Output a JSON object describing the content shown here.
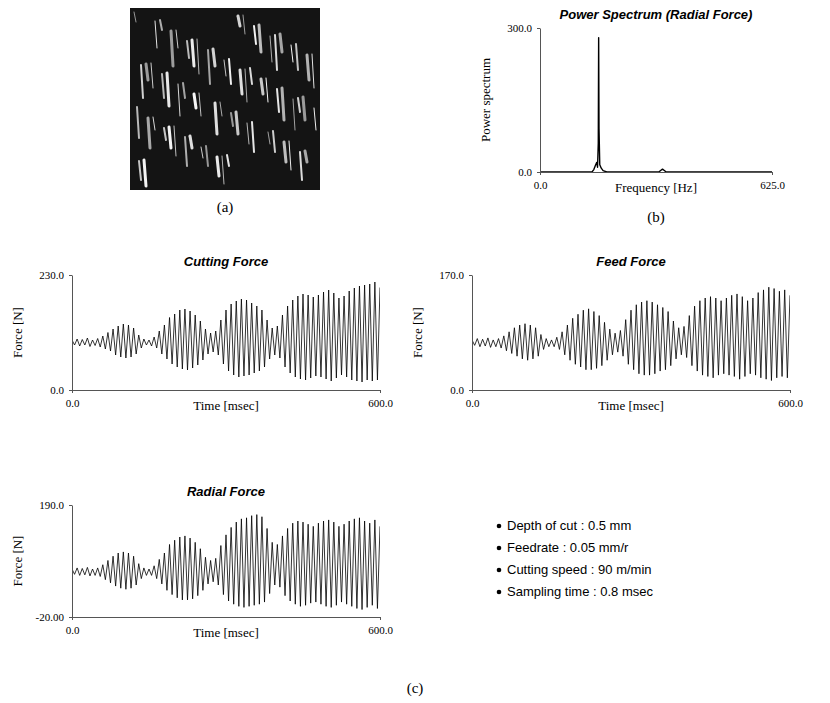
{
  "figure": {
    "panel_labels": [
      "(a)",
      "(b)",
      "(c)"
    ],
    "parameters": [
      "Depth of cut : 0.5 mm",
      "Feedrate : 0.05 mm/r",
      "Cutting speed : 90 m/min",
      "Sampling time : 0.8 msec"
    ]
  },
  "chart_data": [
    {
      "type": "line",
      "title": "Power Spectrum (Radial Force)",
      "x_label": "Frequency [Hz]",
      "y_label": "Power spectrum",
      "color": "#000000",
      "x": [
        0,
        140,
        145,
        150,
        153,
        155,
        157,
        158,
        159,
        161,
        165,
        170,
        180,
        320,
        325,
        330,
        335,
        340,
        625
      ],
      "values": [
        0,
        0,
        5,
        15,
        20,
        10,
        60,
        280,
        90,
        15,
        8,
        3,
        0,
        0,
        3,
        6,
        3,
        0,
        0
      ],
      "xlim": [
        0,
        625
      ],
      "xticks": [
        {
          "value": 0,
          "label": "0.0"
        },
        {
          "value": 625,
          "label": "625.0"
        }
      ],
      "ylim": [
        0,
        300
      ],
      "yticks": [
        {
          "value": 0,
          "label": "0.0"
        },
        {
          "value": 300,
          "label": "300.0"
        }
      ]
    },
    {
      "type": "line",
      "title": "Cutting Force",
      "x_label": "Time [msec]",
      "y_label": "Force [N]",
      "color": "#000000",
      "x": [
        0,
        5,
        10,
        15,
        20,
        25,
        30,
        35,
        40,
        45,
        50,
        55,
        60,
        65,
        70,
        75,
        80,
        85,
        90,
        95,
        100,
        105,
        110,
        115,
        120,
        125,
        130,
        135,
        140,
        145,
        150,
        155,
        160,
        165,
        170,
        175,
        180,
        185,
        190,
        195,
        200,
        205,
        210,
        215,
        220,
        225,
        230,
        235,
        240,
        245,
        250,
        255,
        260,
        265,
        270,
        275,
        280,
        285,
        290,
        295,
        300,
        305,
        310,
        315,
        320,
        325,
        330,
        335,
        340,
        345,
        350,
        355,
        360,
        365,
        370,
        375,
        380,
        385,
        390,
        395,
        400,
        405,
        410,
        415,
        420,
        425,
        430,
        435,
        440,
        445,
        450,
        455,
        460,
        465,
        470,
        475,
        480,
        485,
        490,
        495,
        500,
        505,
        510,
        515,
        520,
        525,
        530,
        535,
        540,
        545,
        550,
        555,
        560,
        565,
        570,
        575,
        580,
        585,
        590,
        595,
        600
      ],
      "values": [
        100,
        90,
        102,
        88,
        101,
        90,
        104,
        87,
        100,
        89,
        103,
        86,
        108,
        82,
        115,
        78,
        122,
        70,
        128,
        66,
        132,
        64,
        130,
        66,
        124,
        72,
        110,
        84,
        102,
        90,
        100,
        88,
        106,
        84,
        118,
        72,
        130,
        62,
        145,
        52,
        152,
        46,
        160,
        42,
        162,
        40,
        158,
        44,
        150,
        50,
        138,
        60,
        122,
        72,
        114,
        76,
        118,
        70,
        140,
        52,
        160,
        38,
        172,
        30,
        178,
        26,
        182,
        28,
        180,
        30,
        174,
        34,
        168,
        38,
        160,
        46,
        140,
        62,
        124,
        70,
        128,
        64,
        150,
        46,
        168,
        34,
        180,
        26,
        188,
        22,
        192,
        20,
        190,
        24,
        186,
        28,
        190,
        26,
        196,
        22,
        200,
        18,
        194,
        24,
        184,
        30,
        188,
        26,
        198,
        20,
        204,
        18,
        208,
        16,
        210,
        20,
        212,
        18,
        216,
        20,
        205
      ],
      "xlim": [
        0,
        600
      ],
      "xticks": [
        {
          "value": 0,
          "label": "0.0"
        },
        {
          "value": 600,
          "label": "600.0"
        }
      ],
      "ylim": [
        0,
        230
      ],
      "yticks": [
        {
          "value": 0,
          "label": "0.0"
        },
        {
          "value": 230,
          "label": "230.0"
        }
      ]
    },
    {
      "type": "line",
      "title": "Feed Force",
      "x_label": "Time [msec]",
      "y_label": "Force [N]",
      "color": "#000000",
      "x": [
        0,
        5,
        10,
        15,
        20,
        25,
        30,
        35,
        40,
        45,
        50,
        55,
        60,
        65,
        70,
        75,
        80,
        85,
        90,
        95,
        100,
        105,
        110,
        115,
        120,
        125,
        130,
        135,
        140,
        145,
        150,
        155,
        160,
        165,
        170,
        175,
        180,
        185,
        190,
        195,
        200,
        205,
        210,
        215,
        220,
        225,
        230,
        235,
        240,
        245,
        250,
        255,
        260,
        265,
        270,
        275,
        280,
        285,
        290,
        295,
        300,
        305,
        310,
        315,
        320,
        325,
        330,
        335,
        340,
        345,
        350,
        355,
        360,
        365,
        370,
        375,
        380,
        385,
        390,
        395,
        400,
        405,
        410,
        415,
        420,
        425,
        430,
        435,
        440,
        445,
        450,
        455,
        460,
        465,
        470,
        475,
        480,
        485,
        490,
        495,
        500,
        505,
        510,
        515,
        520,
        525,
        530,
        535,
        540,
        545,
        550,
        555,
        560,
        565,
        570,
        575,
        580,
        585,
        590,
        595,
        600
      ],
      "values": [
        74,
        66,
        76,
        64,
        75,
        65,
        77,
        63,
        74,
        64,
        76,
        62,
        80,
        58,
        86,
        54,
        92,
        50,
        96,
        46,
        98,
        44,
        96,
        46,
        92,
        50,
        82,
        60,
        76,
        64,
        74,
        64,
        78,
        60,
        86,
        52,
        96,
        44,
        106,
        38,
        112,
        34,
        118,
        30,
        120,
        30,
        116,
        32,
        110,
        36,
        100,
        44,
        90,
        52,
        84,
        56,
        88,
        50,
        104,
        38,
        118,
        30,
        126,
        24,
        130,
        22,
        132,
        22,
        130,
        24,
        126,
        28,
        122,
        30,
        116,
        36,
        102,
        46,
        92,
        52,
        94,
        48,
        110,
        36,
        124,
        28,
        132,
        22,
        136,
        20,
        138,
        18,
        136,
        22,
        132,
        24,
        136,
        22,
        140,
        20,
        142,
        16,
        138,
        20,
        132,
        24,
        136,
        22,
        144,
        18,
        148,
        16,
        152,
        14,
        150,
        18,
        146,
        20,
        148,
        18,
        140
      ],
      "xlim": [
        0,
        600
      ],
      "xticks": [
        {
          "value": 0,
          "label": "0.0"
        },
        {
          "value": 600,
          "label": "600.0"
        }
      ],
      "ylim": [
        0,
        170
      ],
      "yticks": [
        {
          "value": 0,
          "label": "0.0"
        },
        {
          "value": 170,
          "label": "170.0"
        }
      ]
    },
    {
      "type": "line",
      "title": "Radial Force",
      "x_label": "Time [msec]",
      "y_label": "Force [N]",
      "color": "#000000",
      "x": [
        0,
        5,
        10,
        15,
        20,
        25,
        30,
        35,
        40,
        45,
        50,
        55,
        60,
        65,
        70,
        75,
        80,
        85,
        90,
        95,
        100,
        105,
        110,
        115,
        120,
        125,
        130,
        135,
        140,
        145,
        150,
        155,
        160,
        165,
        170,
        175,
        180,
        185,
        190,
        195,
        200,
        205,
        210,
        215,
        220,
        225,
        230,
        235,
        240,
        245,
        250,
        255,
        260,
        265,
        270,
        275,
        280,
        285,
        290,
        295,
        300,
        305,
        310,
        315,
        320,
        325,
        330,
        335,
        340,
        345,
        350,
        355,
        360,
        365,
        370,
        375,
        380,
        385,
        390,
        395,
        400,
        405,
        410,
        415,
        420,
        425,
        430,
        435,
        440,
        445,
        450,
        455,
        460,
        465,
        470,
        475,
        480,
        485,
        490,
        495,
        500,
        505,
        510,
        515,
        520,
        525,
        530,
        535,
        540,
        545,
        550,
        555,
        560,
        565,
        570,
        575,
        580,
        585,
        590,
        595,
        600
      ],
      "values": [
        70,
        60,
        72,
        58,
        71,
        59,
        73,
        57,
        70,
        58,
        72,
        56,
        78,
        50,
        86,
        44,
        94,
        38,
        100,
        34,
        102,
        32,
        100,
        34,
        94,
        40,
        80,
        52,
        72,
        58,
        70,
        58,
        76,
        52,
        88,
        42,
        100,
        30,
        116,
        22,
        124,
        16,
        130,
        12,
        132,
        12,
        128,
        14,
        120,
        20,
        108,
        30,
        92,
        42,
        86,
        46,
        90,
        40,
        114,
        22,
        134,
        10,
        148,
        4,
        158,
        0,
        164,
        -2,
        166,
        0,
        170,
        2,
        172,
        4,
        168,
        8,
        146,
        24,
        120,
        40,
        116,
        36,
        132,
        20,
        146,
        10,
        156,
        4,
        160,
        0,
        158,
        2,
        154,
        6,
        150,
        8,
        156,
        4,
        160,
        0,
        162,
        -2,
        158,
        2,
        150,
        8,
        154,
        4,
        160,
        0,
        164,
        -4,
        166,
        -6,
        160,
        -2,
        156,
        2,
        162,
        -4,
        150
      ],
      "xlim": [
        0,
        600
      ],
      "xticks": [
        {
          "value": 0,
          "label": "0.0"
        },
        {
          "value": 600,
          "label": "600.0"
        }
      ],
      "ylim": [
        -20,
        190
      ],
      "yticks": [
        {
          "value": -20,
          "label": "-20.00"
        },
        {
          "value": 190,
          "label": "190.0"
        }
      ]
    }
  ]
}
